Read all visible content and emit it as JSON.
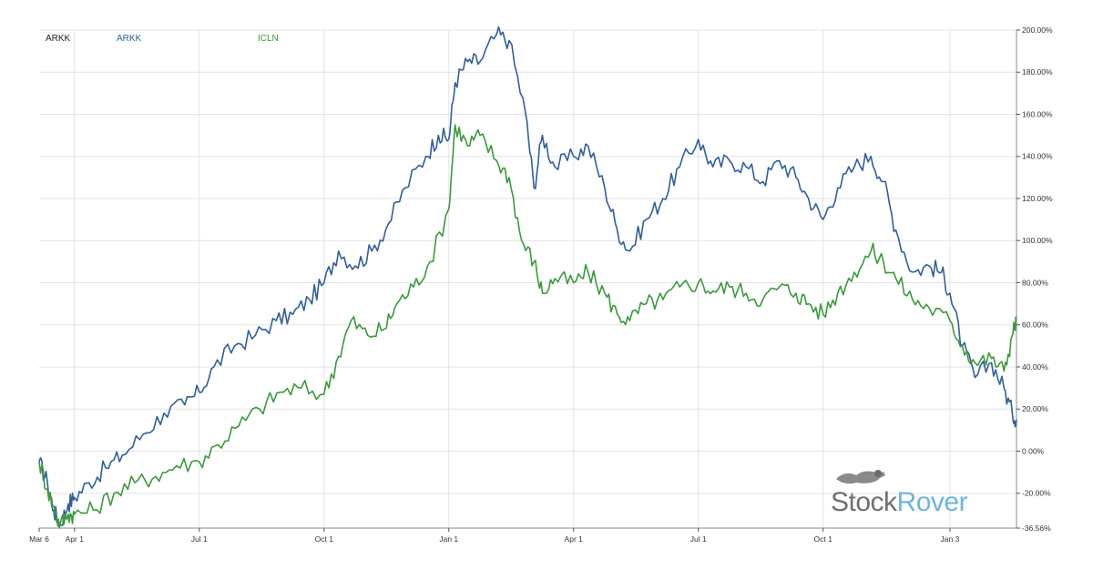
{
  "legend": [
    {
      "label": "ARKK",
      "color": "#222222"
    },
    {
      "label": "ARKK",
      "color": "#2f5f9e"
    },
    {
      "label": "ICLN",
      "color": "#3a9a3a"
    }
  ],
  "watermark": {
    "part1": "Stock",
    "part2": "Rover"
  },
  "colors": {
    "grid": "#e3e3e3",
    "axis": "#555555"
  },
  "chart_data": {
    "type": "line",
    "x_tick_labels": [
      "Mar 6",
      "Apr 1",
      "Jul 1",
      "Oct 1",
      "Jan 1",
      "Apr 1",
      "Jul 1",
      "Oct 1",
      "Jan 3"
    ],
    "x_tick_month_index": [
      0,
      0.85,
      3.85,
      6.85,
      9.85,
      12.85,
      15.85,
      18.85,
      21.9
    ],
    "x_range_month_index": [
      0,
      23.5
    ],
    "y_tick_labels": [
      "200.00%",
      "180.00%",
      "160.00%",
      "140.00%",
      "120.00%",
      "100.00%",
      "80.00%",
      "60.00%",
      "40.00%",
      "20.00%",
      "0.00%",
      "-20.00%",
      "-36.56%"
    ],
    "y_tick_values": [
      200,
      180,
      160,
      140,
      120,
      100,
      80,
      60,
      40,
      20,
      0,
      -20,
      -36.56
    ],
    "ylim": [
      -36.56,
      200
    ],
    "grid": true,
    "series": [
      {
        "name": "ARKK",
        "color": "#2f5f9e",
        "points": [
          [
            0,
            -5
          ],
          [
            0.2,
            -15
          ],
          [
            0.35,
            -28
          ],
          [
            0.5,
            -35
          ],
          [
            0.7,
            -25
          ],
          [
            0.85,
            -22
          ],
          [
            1.2,
            -15
          ],
          [
            1.6,
            -8
          ],
          [
            2.0,
            -2
          ],
          [
            2.5,
            8
          ],
          [
            3.0,
            18
          ],
          [
            3.5,
            22
          ],
          [
            3.85,
            28
          ],
          [
            4.2,
            40
          ],
          [
            4.7,
            50
          ],
          [
            5.2,
            55
          ],
          [
            5.7,
            62
          ],
          [
            6.1,
            65
          ],
          [
            6.5,
            72
          ],
          [
            6.85,
            80
          ],
          [
            7.2,
            95
          ],
          [
            7.6,
            88
          ],
          [
            8.0,
            95
          ],
          [
            8.4,
            108
          ],
          [
            8.8,
            125
          ],
          [
            9.3,
            140
          ],
          [
            9.6,
            150
          ],
          [
            9.85,
            148
          ],
          [
            10.0,
            175
          ],
          [
            10.3,
            185
          ],
          [
            10.6,
            185
          ],
          [
            11.0,
            198
          ],
          [
            11.3,
            195
          ],
          [
            11.7,
            160
          ],
          [
            11.9,
            125
          ],
          [
            12.1,
            150
          ],
          [
            12.4,
            135
          ],
          [
            12.85,
            140
          ],
          [
            13.2,
            145
          ],
          [
            13.6,
            125
          ],
          [
            13.9,
            105
          ],
          [
            14.2,
            95
          ],
          [
            14.6,
            110
          ],
          [
            15.0,
            120
          ],
          [
            15.4,
            135
          ],
          [
            15.85,
            148
          ],
          [
            16.2,
            135
          ],
          [
            16.6,
            138
          ],
          [
            17.0,
            135
          ],
          [
            17.4,
            128
          ],
          [
            17.8,
            138
          ],
          [
            18.2,
            130
          ],
          [
            18.5,
            120
          ],
          [
            18.85,
            110
          ],
          [
            19.2,
            125
          ],
          [
            19.6,
            135
          ],
          [
            20.0,
            140
          ],
          [
            20.3,
            128
          ],
          [
            20.6,
            105
          ],
          [
            21.0,
            85
          ],
          [
            21.4,
            88
          ],
          [
            21.7,
            85
          ],
          [
            21.9,
            75
          ],
          [
            22.2,
            50
          ],
          [
            22.5,
            35
          ],
          [
            22.9,
            42
          ],
          [
            23.2,
            30
          ],
          [
            23.4,
            18
          ],
          [
            23.5,
            15
          ]
        ]
      },
      {
        "name": "ICLN",
        "color": "#3a9a3a",
        "points": [
          [
            0,
            -5
          ],
          [
            0.2,
            -18
          ],
          [
            0.4,
            -30
          ],
          [
            0.5,
            -35
          ],
          [
            0.7,
            -30
          ],
          [
            0.85,
            -30
          ],
          [
            1.3,
            -28
          ],
          [
            1.8,
            -20
          ],
          [
            2.3,
            -15
          ],
          [
            2.8,
            -12
          ],
          [
            3.3,
            -7
          ],
          [
            3.85,
            -5
          ],
          [
            4.3,
            3
          ],
          [
            4.8,
            12
          ],
          [
            5.3,
            20
          ],
          [
            5.8,
            28
          ],
          [
            6.3,
            30
          ],
          [
            6.85,
            27
          ],
          [
            7.2,
            45
          ],
          [
            7.5,
            62
          ],
          [
            7.9,
            55
          ],
          [
            8.3,
            58
          ],
          [
            8.6,
            70
          ],
          [
            9.0,
            78
          ],
          [
            9.4,
            90
          ],
          [
            9.85,
            115
          ],
          [
            10.0,
            155
          ],
          [
            10.3,
            145
          ],
          [
            10.6,
            150
          ],
          [
            11.0,
            138
          ],
          [
            11.3,
            130
          ],
          [
            11.6,
            100
          ],
          [
            11.9,
            90
          ],
          [
            12.1,
            75
          ],
          [
            12.4,
            82
          ],
          [
            12.85,
            80
          ],
          [
            13.2,
            85
          ],
          [
            13.6,
            75
          ],
          [
            13.9,
            65
          ],
          [
            14.2,
            62
          ],
          [
            14.6,
            70
          ],
          [
            15.0,
            72
          ],
          [
            15.4,
            78
          ],
          [
            15.85,
            80
          ],
          [
            16.2,
            76
          ],
          [
            16.6,
            78
          ],
          [
            17.0,
            75
          ],
          [
            17.4,
            72
          ],
          [
            17.8,
            78
          ],
          [
            18.2,
            75
          ],
          [
            18.5,
            70
          ],
          [
            18.85,
            65
          ],
          [
            19.2,
            75
          ],
          [
            19.6,
            85
          ],
          [
            20.0,
            95
          ],
          [
            20.3,
            90
          ],
          [
            20.6,
            82
          ],
          [
            21.0,
            72
          ],
          [
            21.4,
            68
          ],
          [
            21.9,
            62
          ],
          [
            22.2,
            50
          ],
          [
            22.5,
            42
          ],
          [
            22.9,
            44
          ],
          [
            23.2,
            38
          ],
          [
            23.4,
            55
          ],
          [
            23.5,
            63
          ]
        ]
      }
    ]
  }
}
